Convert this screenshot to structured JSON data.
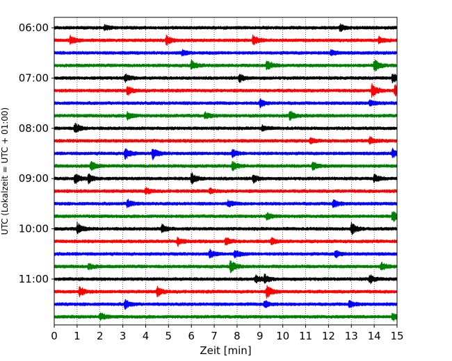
{
  "chart_data": {
    "type": "line",
    "title": "",
    "xlabel": "Zeit  [min]",
    "ylabel": "UTC (Lokalzeit = UTC + 01:00)",
    "xlim": [
      0,
      15
    ],
    "x_ticks": [
      "0",
      "1",
      "2",
      "3",
      "4",
      "5",
      "6",
      "7",
      "8",
      "9",
      "10",
      "11",
      "12",
      "13",
      "14",
      "15"
    ],
    "y_tick_labels": [
      "06:00",
      "07:00",
      "08:00",
      "09:00",
      "10:00",
      "11:00"
    ],
    "y_tick_rows": [
      0,
      4,
      8,
      12,
      16,
      20
    ],
    "trace_minutes_per_row": 15,
    "row_start_times": [
      "06:00",
      "06:15",
      "06:30",
      "06:45",
      "07:00",
      "07:15",
      "07:30",
      "07:45",
      "08:00",
      "08:15",
      "08:30",
      "08:45",
      "09:00",
      "09:15",
      "09:30",
      "09:45",
      "10:00",
      "10:15",
      "10:30",
      "10:45",
      "11:00",
      "11:15",
      "11:30",
      "11:45"
    ],
    "color_cycle": [
      "#000000",
      "#ff0000",
      "#0000ff",
      "#008000"
    ],
    "grid": {
      "x": true,
      "y": false,
      "style": "dotted"
    },
    "legend": "none",
    "events": [
      {
        "row": 0,
        "minute": 2.2,
        "amp": 0.4
      },
      {
        "row": 0,
        "minute": 12.5,
        "amp": 0.5
      },
      {
        "row": 1,
        "minute": 0.7,
        "amp": 0.6
      },
      {
        "row": 1,
        "minute": 4.9,
        "amp": 0.7
      },
      {
        "row": 1,
        "minute": 8.7,
        "amp": 0.8
      },
      {
        "row": 1,
        "minute": 14.2,
        "amp": 0.5
      },
      {
        "row": 2,
        "minute": 5.6,
        "amp": 0.4
      },
      {
        "row": 2,
        "minute": 12.1,
        "amp": 0.4
      },
      {
        "row": 3,
        "minute": 6.0,
        "amp": 0.7
      },
      {
        "row": 3,
        "minute": 9.3,
        "amp": 0.8
      },
      {
        "row": 3,
        "minute": 14.0,
        "amp": 1.0
      },
      {
        "row": 4,
        "minute": 3.1,
        "amp": 0.6
      },
      {
        "row": 4,
        "minute": 8.1,
        "amp": 0.6
      },
      {
        "row": 4,
        "minute": 14.8,
        "amp": 0.7
      },
      {
        "row": 5,
        "minute": 3.2,
        "amp": 0.7
      },
      {
        "row": 5,
        "minute": 13.9,
        "amp": 1.0
      },
      {
        "row": 5,
        "minute": 14.9,
        "amp": 0.9
      },
      {
        "row": 6,
        "minute": 9.0,
        "amp": 0.6
      },
      {
        "row": 6,
        "minute": 13.8,
        "amp": 0.4
      },
      {
        "row": 7,
        "minute": 3.2,
        "amp": 0.6
      },
      {
        "row": 7,
        "minute": 6.6,
        "amp": 0.5
      },
      {
        "row": 7,
        "minute": 10.3,
        "amp": 0.8
      },
      {
        "row": 8,
        "minute": 0.9,
        "amp": 0.8
      },
      {
        "row": 8,
        "minute": 9.1,
        "amp": 0.4
      },
      {
        "row": 9,
        "minute": 11.2,
        "amp": 0.4
      },
      {
        "row": 9,
        "minute": 13.8,
        "amp": 0.6
      },
      {
        "row": 10,
        "minute": 3.1,
        "amp": 0.9
      },
      {
        "row": 10,
        "minute": 4.3,
        "amp": 0.9
      },
      {
        "row": 10,
        "minute": 7.8,
        "amp": 0.6
      },
      {
        "row": 10,
        "minute": 14.8,
        "amp": 0.6
      },
      {
        "row": 11,
        "minute": 1.6,
        "amp": 0.7
      },
      {
        "row": 11,
        "minute": 7.8,
        "amp": 0.7
      },
      {
        "row": 11,
        "minute": 11.3,
        "amp": 0.6
      },
      {
        "row": 12,
        "minute": 0.9,
        "amp": 0.8
      },
      {
        "row": 12,
        "minute": 1.5,
        "amp": 0.7
      },
      {
        "row": 12,
        "minute": 6.0,
        "amp": 0.9
      },
      {
        "row": 12,
        "minute": 8.7,
        "amp": 0.6
      },
      {
        "row": 12,
        "minute": 14.0,
        "amp": 0.6
      },
      {
        "row": 13,
        "minute": 4.0,
        "amp": 0.5
      },
      {
        "row": 13,
        "minute": 6.8,
        "amp": 0.4
      },
      {
        "row": 14,
        "minute": 3.2,
        "amp": 0.7
      },
      {
        "row": 14,
        "minute": 7.6,
        "amp": 0.5
      },
      {
        "row": 14,
        "minute": 12.2,
        "amp": 0.7
      },
      {
        "row": 15,
        "minute": 9.3,
        "amp": 0.5
      },
      {
        "row": 15,
        "minute": 14.8,
        "amp": 0.9
      },
      {
        "row": 16,
        "minute": 1.0,
        "amp": 1.0
      },
      {
        "row": 16,
        "minute": 4.7,
        "amp": 0.7
      },
      {
        "row": 16,
        "minute": 13.0,
        "amp": 0.9
      },
      {
        "row": 17,
        "minute": 5.4,
        "amp": 0.6
      },
      {
        "row": 17,
        "minute": 7.5,
        "amp": 0.6
      },
      {
        "row": 17,
        "minute": 9.5,
        "amp": 0.5
      },
      {
        "row": 18,
        "minute": 6.8,
        "amp": 0.6
      },
      {
        "row": 18,
        "minute": 7.9,
        "amp": 0.6
      },
      {
        "row": 18,
        "minute": 12.3,
        "amp": 0.6
      },
      {
        "row": 19,
        "minute": 1.5,
        "amp": 0.5
      },
      {
        "row": 19,
        "minute": 7.7,
        "amp": 1.0
      },
      {
        "row": 19,
        "minute": 14.3,
        "amp": 0.7
      },
      {
        "row": 20,
        "minute": 8.8,
        "amp": 0.6
      },
      {
        "row": 20,
        "minute": 9.2,
        "amp": 0.6
      },
      {
        "row": 20,
        "minute": 13.8,
        "amp": 0.7
      },
      {
        "row": 21,
        "minute": 1.1,
        "amp": 0.7
      },
      {
        "row": 21,
        "minute": 4.5,
        "amp": 0.8
      },
      {
        "row": 21,
        "minute": 9.3,
        "amp": 1.0
      },
      {
        "row": 22,
        "minute": 3.1,
        "amp": 0.7
      },
      {
        "row": 22,
        "minute": 9.2,
        "amp": 0.6
      },
      {
        "row": 22,
        "minute": 12.9,
        "amp": 0.6
      },
      {
        "row": 23,
        "minute": 2.0,
        "amp": 0.6
      },
      {
        "row": 23,
        "minute": 14.8,
        "amp": 0.6
      }
    ]
  }
}
